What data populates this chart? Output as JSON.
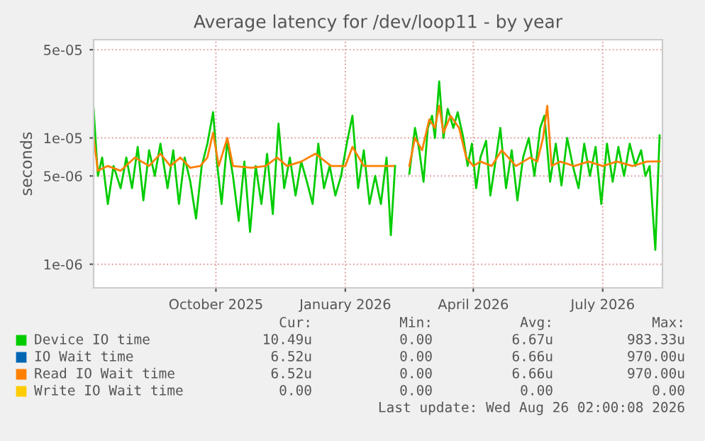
{
  "chart_data": {
    "type": "line",
    "title": "Average latency for /dev/loop11 - by year",
    "ylabel": "seconds",
    "log": "y",
    "xlim": [
      "2025-07-22",
      "2026-08-26"
    ],
    "ylim": [
      6.5e-07,
      6e-05
    ],
    "xticks": [
      {
        "value": "2025-10-16",
        "label": "October 2025"
      },
      {
        "value": "2026-01-15",
        "label": "January 2026"
      },
      {
        "value": "2026-04-15",
        "label": "April 2026"
      },
      {
        "value": "2026-07-15",
        "label": "July 2026"
      }
    ],
    "yticks": [
      {
        "value": 1e-06,
        "label": "1e-06"
      },
      {
        "value": 5e-06,
        "label": "5e-06"
      },
      {
        "value": 1e-05,
        "label": "1e-05"
      },
      {
        "value": 5e-05,
        "label": "5e-05"
      }
    ],
    "grid": true,
    "legend": "bottom",
    "marker": "none",
    "line_style": "solid",
    "series": [
      {
        "name": "Device IO time",
        "color": "#00cc00",
        "x": [
          "2025-07-22",
          "2025-07-25",
          "2025-07-28",
          "2025-08-01",
          "2025-08-05",
          "2025-08-10",
          "2025-08-14",
          "2025-08-18",
          "2025-08-22",
          "2025-08-26",
          "2025-08-30",
          "2025-09-03",
          "2025-09-07",
          "2025-09-12",
          "2025-09-16",
          "2025-09-20",
          "2025-09-24",
          "2025-09-28",
          "2025-10-02",
          "2025-10-06",
          "2025-10-10",
          "2025-10-14",
          "2025-10-17",
          "2025-10-20",
          "2025-10-24",
          "2025-10-28",
          "2025-11-01",
          "2025-11-05",
          "2025-11-09",
          "2025-11-13",
          "2025-11-17",
          "2025-11-21",
          "2025-11-25",
          "2025-11-29",
          "2025-12-03",
          "2025-12-07",
          "2025-12-11",
          "2025-12-15",
          "2025-12-19",
          "2025-12-23",
          "2025-12-27",
          "2025-12-31",
          "2026-01-04",
          "2026-01-08",
          "2026-01-12",
          "2026-01-16",
          "2026-01-20",
          "2026-01-24",
          "2026-01-28",
          "2026-02-01",
          "2026-02-05",
          "2026-02-09",
          "2026-02-13",
          "2026-02-16",
          "2026-02-19",
          "2026-02-24",
          "2026-03-01",
          "2026-03-05",
          "2026-03-08",
          "2026-03-11",
          "2026-03-14",
          "2026-03-17",
          "2026-03-19",
          "2026-03-22",
          "2026-03-25",
          "2026-03-28",
          "2026-04-01",
          "2026-04-04",
          "2026-04-08",
          "2026-04-11",
          "2026-04-14",
          "2026-04-17",
          "2026-04-20",
          "2026-04-24",
          "2026-04-27",
          "2026-05-01",
          "2026-05-04",
          "2026-05-08",
          "2026-05-12",
          "2026-05-16",
          "2026-05-20",
          "2026-05-24",
          "2026-05-28",
          "2026-06-01",
          "2026-06-04",
          "2026-06-08",
          "2026-06-12",
          "2026-06-16",
          "2026-06-20",
          "2026-06-24",
          "2026-06-28",
          "2026-07-02",
          "2026-07-06",
          "2026-07-10",
          "2026-07-14",
          "2026-07-18",
          "2026-07-22",
          "2026-07-26",
          "2026-07-30",
          "2026-08-03",
          "2026-08-07",
          "2026-08-11",
          "2026-08-14",
          "2026-08-17",
          "2026-08-21",
          "2026-08-24"
        ],
        "values": [
          1.7e-05,
          5e-06,
          7e-06,
          3e-06,
          6e-06,
          4e-06,
          7e-06,
          4e-06,
          8.5e-06,
          3.2e-06,
          8e-06,
          5e-06,
          9e-06,
          4e-06,
          8e-06,
          3e-06,
          7e-06,
          4.5e-06,
          2.3e-06,
          6e-06,
          9e-06,
          1.6e-05,
          6e-06,
          3e-06,
          9.5e-06,
          5e-06,
          2.2e-06,
          6.5e-06,
          1.8e-06,
          6e-06,
          3e-06,
          7.5e-06,
          2.5e-06,
          1.3e-05,
          4e-06,
          7e-06,
          3.5e-06,
          6.5e-06,
          4.5e-06,
          3e-06,
          9e-06,
          4e-06,
          6e-06,
          3.5e-06,
          5e-06,
          9e-06,
          1.5e-05,
          4e-06,
          8e-06,
          3e-06,
          5e-06,
          3e-06,
          7e-06,
          1.7e-06,
          6e-06,
          null,
          5.2e-06,
          1.2e-05,
          8e-06,
          4.5e-06,
          1.2e-05,
          1.5e-05,
          1e-05,
          2.8e-05,
          1e-05,
          1.7e-05,
          1.2e-05,
          1.6e-05,
          1e-05,
          6e-06,
          9e-06,
          4e-06,
          7e-06,
          9.5e-06,
          3.5e-06,
          7e-06,
          1.2e-05,
          4e-06,
          8e-06,
          3.2e-06,
          7e-06,
          1e-05,
          5e-06,
          1.2e-05,
          1.5e-05,
          4.5e-06,
          9e-06,
          4.2e-06,
          1e-05,
          6e-06,
          4e-06,
          9e-06,
          5e-06,
          8.5e-06,
          3e-06,
          9e-06,
          4.5e-06,
          8.5e-06,
          5e-06,
          9e-06,
          6e-06,
          8e-06,
          5e-06,
          6e-06,
          1.3e-06,
          1.049e-05
        ]
      },
      {
        "name": "IO Wait time",
        "color": "#0066b3"
      },
      {
        "name": "Read IO Wait time",
        "color": "#ff8000",
        "x": [
          "2025-07-22",
          "2025-07-25",
          "2025-08-01",
          "2025-08-10",
          "2025-08-20",
          "2025-08-30",
          "2025-09-07",
          "2025-09-14",
          "2025-09-21",
          "2025-09-28",
          "2025-10-05",
          "2025-10-10",
          "2025-10-14",
          "2025-10-18",
          "2025-10-24",
          "2025-10-28",
          "2025-11-10",
          "2025-11-20",
          "2025-11-28",
          "2025-12-05",
          "2025-12-15",
          "2025-12-25",
          "2026-01-05",
          "2026-01-15",
          "2026-01-20",
          "2026-01-28",
          "2026-02-08",
          "2026-02-18",
          "2026-02-24",
          "2026-03-01",
          "2026-03-05",
          "2026-03-10",
          "2026-03-15",
          "2026-03-19",
          "2026-03-22",
          "2026-03-25",
          "2026-03-30",
          "2026-04-05",
          "2026-04-10",
          "2026-04-15",
          "2026-04-20",
          "2026-04-28",
          "2026-05-05",
          "2026-05-15",
          "2026-05-25",
          "2026-05-30",
          "2026-06-03",
          "2026-06-06",
          "2026-06-09",
          "2026-06-15",
          "2026-06-25",
          "2026-07-05",
          "2026-07-15",
          "2026-07-25",
          "2026-08-05",
          "2026-08-15",
          "2026-08-24"
        ],
        "values": [
          1e-05,
          5.5e-06,
          6e-06,
          5.5e-06,
          7e-06,
          6e-06,
          7.5e-06,
          6e-06,
          7e-06,
          5.8e-06,
          6e-06,
          7e-06,
          1.1e-05,
          6e-06,
          1e-05,
          6e-06,
          5.8e-06,
          6e-06,
          7e-06,
          6e-06,
          6.5e-06,
          7.5e-06,
          6e-06,
          6e-06,
          8.5e-06,
          6e-06,
          6e-06,
          6e-06,
          null,
          6e-06,
          1e-05,
          8e-06,
          1.4e-05,
          1.2e-05,
          1.8e-05,
          1.1e-05,
          1.5e-05,
          1.2e-05,
          7e-06,
          6e-06,
          6.5e-06,
          6e-06,
          8e-06,
          6e-06,
          7e-06,
          6.5e-06,
          1e-05,
          1.8e-05,
          6e-06,
          6.5e-06,
          6e-06,
          6.5e-06,
          6e-06,
          6.5e-06,
          6e-06,
          6.5e-06,
          6.52e-06
        ]
      },
      {
        "name": "Write IO Wait time",
        "color": "#ffcc00"
      }
    ],
    "annotations": [
      "Cur:",
      "Min:",
      "Avg:",
      "Max:",
      "10.49u",
      "0.00",
      "6.67u",
      "983.33u",
      "6.52u",
      "0.00",
      "6.66u",
      "970.00u",
      "6.52u",
      "0.00",
      "6.66u",
      "970.00u",
      "0.00",
      "0.00",
      "0.00",
      "0.00",
      "Last update: Wed Aug 26 02:00:08 2026"
    ]
  }
}
